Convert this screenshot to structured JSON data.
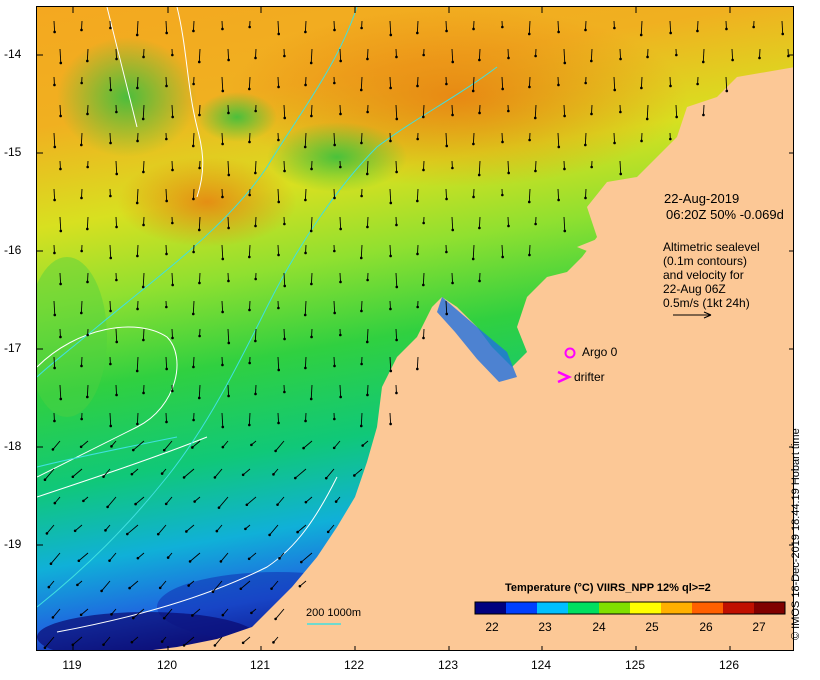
{
  "map": {
    "y_ticks": [
      "-14",
      "-15",
      "-16",
      "-17",
      "-18",
      "-19"
    ],
    "x_ticks": [
      "119",
      "120",
      "121",
      "122",
      "123",
      "124",
      "125",
      "126"
    ],
    "timestamp_line1": "22-Aug-2019",
    "timestamp_line2": "06:20Z  50% -0.069d",
    "sealevel_lines": [
      "Altimetric sealevel",
      "(0.1m contours)",
      "and velocity for",
      "22-Aug 06Z",
      "0.5m/s (1kt 24h)"
    ],
    "argo_label": "Argo 0",
    "drifter_label": "drifter",
    "depth_label": "200  1000m",
    "colors": {
      "land": "#fcc896",
      "argo_marker": "#ff00ff",
      "drifter_marker": "#ff00ff",
      "contour_white": "#ffffff",
      "contour_cyan": "#40e0e0"
    }
  },
  "colorbar": {
    "title": "Temperature (°C) VIIRS_NPP 12% ql>=2",
    "ticks": [
      "22",
      "23",
      "24",
      "25",
      "26",
      "27"
    ],
    "colors": [
      "#00007f",
      "#0040ff",
      "#00c0ff",
      "#00e060",
      "#80e000",
      "#ffff00",
      "#ffb000",
      "#ff6000",
      "#c01000",
      "#800000"
    ]
  },
  "credit": "© IMOS 18-Dec-2019 18:44:19 Hobart time"
}
